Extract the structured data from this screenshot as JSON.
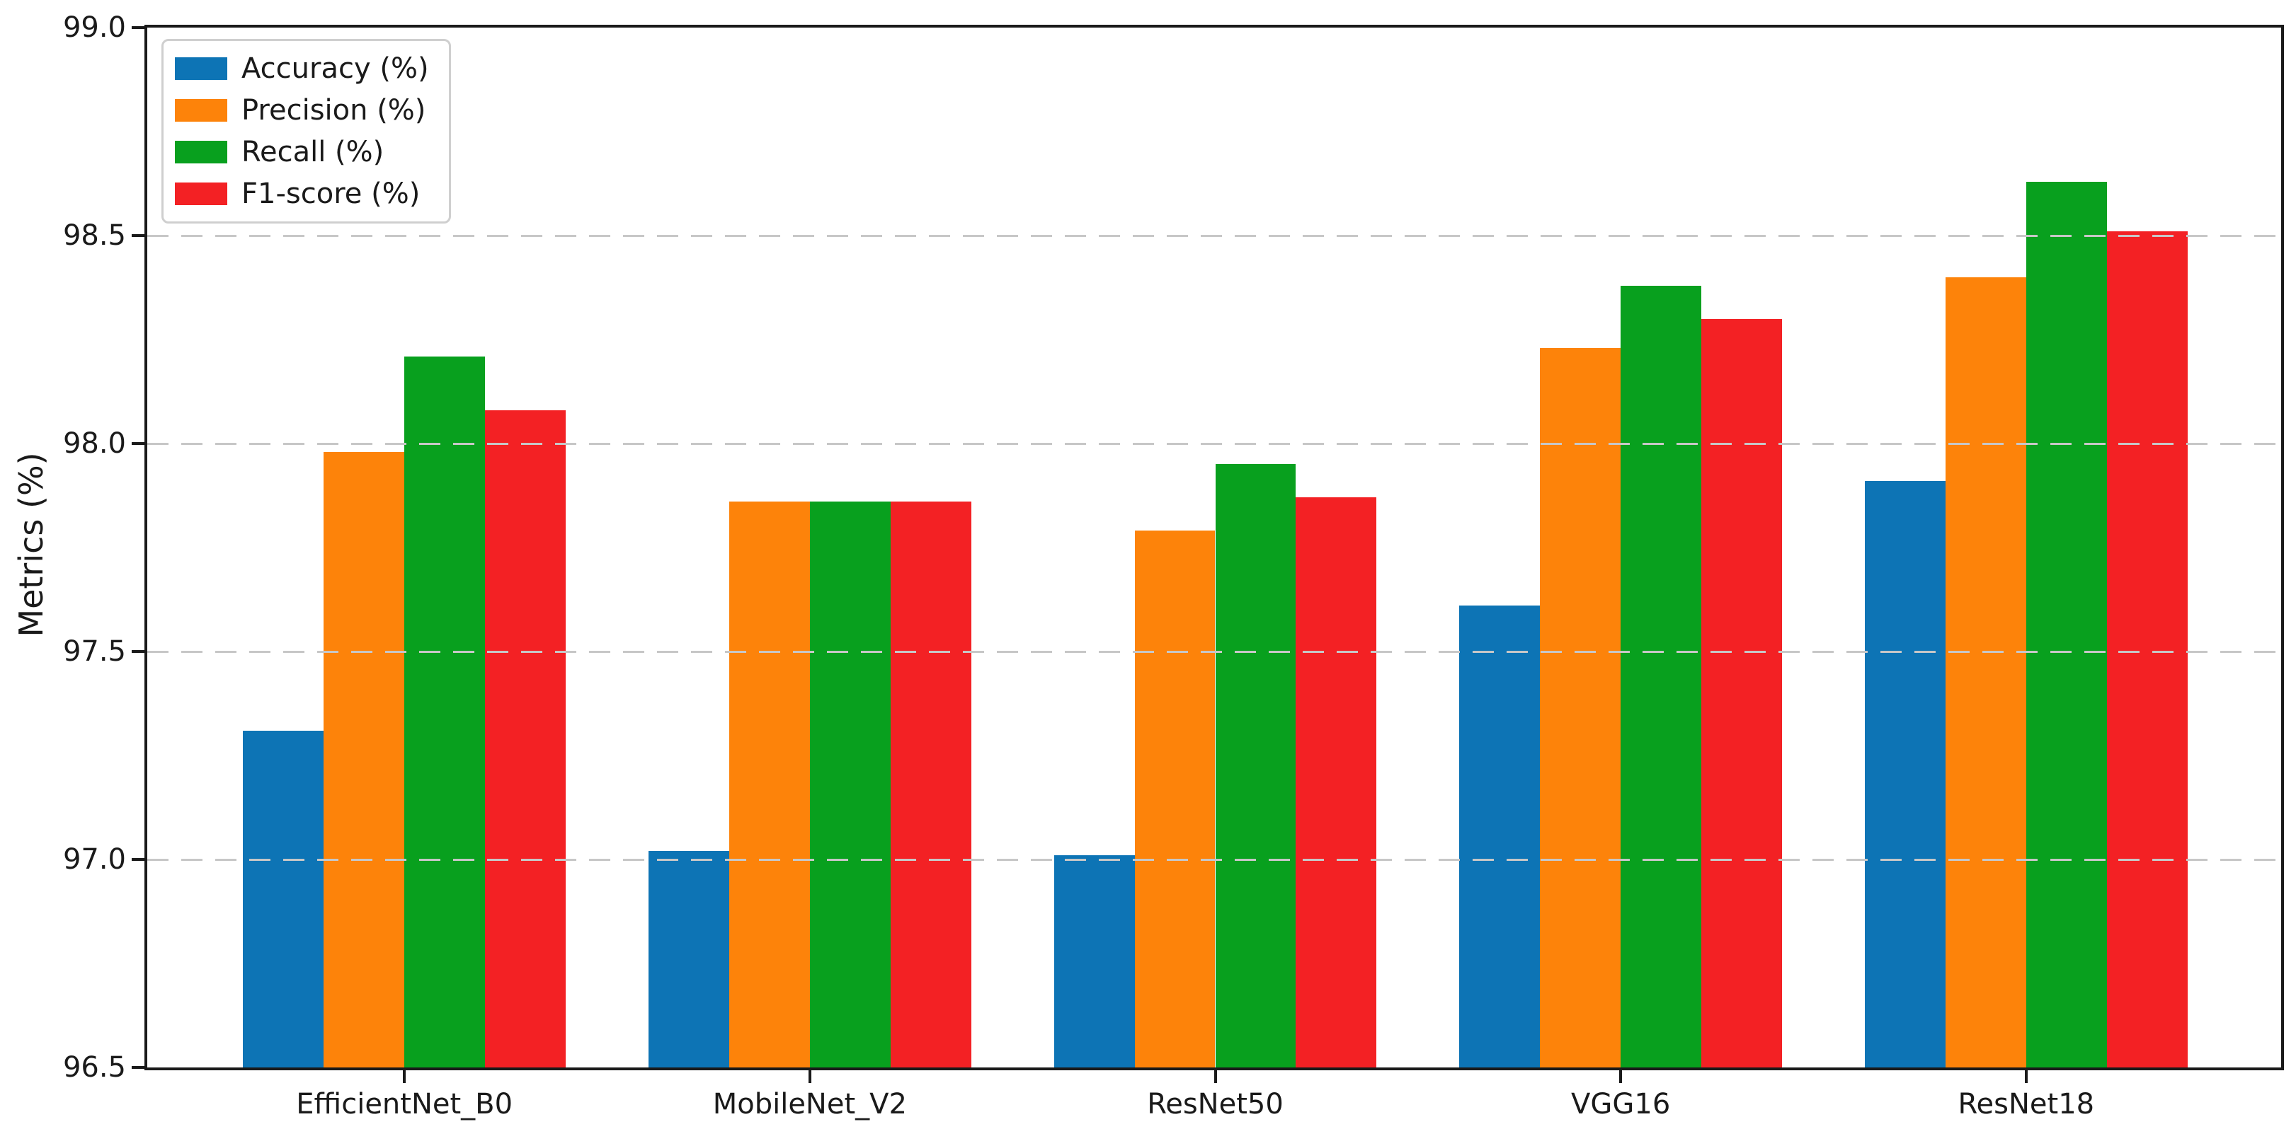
{
  "chart_data": {
    "type": "bar",
    "title": "",
    "xlabel": "",
    "ylabel": "Metrics (%)",
    "categories": [
      "EfficientNet_B0",
      "MobileNet_V2",
      "ResNet50",
      "VGG16",
      "ResNet18"
    ],
    "series": [
      {
        "name": "Accuracy (%)",
        "color": "#0d74b5",
        "values": [
          97.31,
          97.02,
          97.01,
          97.61,
          97.91
        ]
      },
      {
        "name": "Precision (%)",
        "color": "#fd830a",
        "values": [
          97.98,
          97.86,
          97.79,
          98.23,
          98.4
        ]
      },
      {
        "name": "Recall (%)",
        "color": "#08a01e",
        "values": [
          98.21,
          97.86,
          97.95,
          98.38,
          98.63
        ]
      },
      {
        "name": "F1-score (%)",
        "color": "#f32124",
        "values": [
          98.08,
          97.86,
          97.87,
          98.3,
          98.51
        ]
      }
    ],
    "ylim": [
      96.5,
      99.0
    ],
    "yticks": [
      96.5,
      97.0,
      97.5,
      98.0,
      98.5,
      99.0
    ],
    "ytick_labels": [
      "96.5",
      "97.0",
      "97.5",
      "98.0",
      "98.5",
      "99.0"
    ],
    "xtick_labels": [
      "EfficientNet_B0",
      "MobileNet_V2",
      "ResNet50",
      "VGG16",
      "ResNet18"
    ],
    "grid": "horizontal-dashed",
    "legend_position": "upper-left",
    "style": {
      "axis_color": "#1a1a1a",
      "grid_color": "#c7c7c7",
      "background_color": "#ffffff",
      "legend_border_color": "#cfcfcf"
    }
  }
}
